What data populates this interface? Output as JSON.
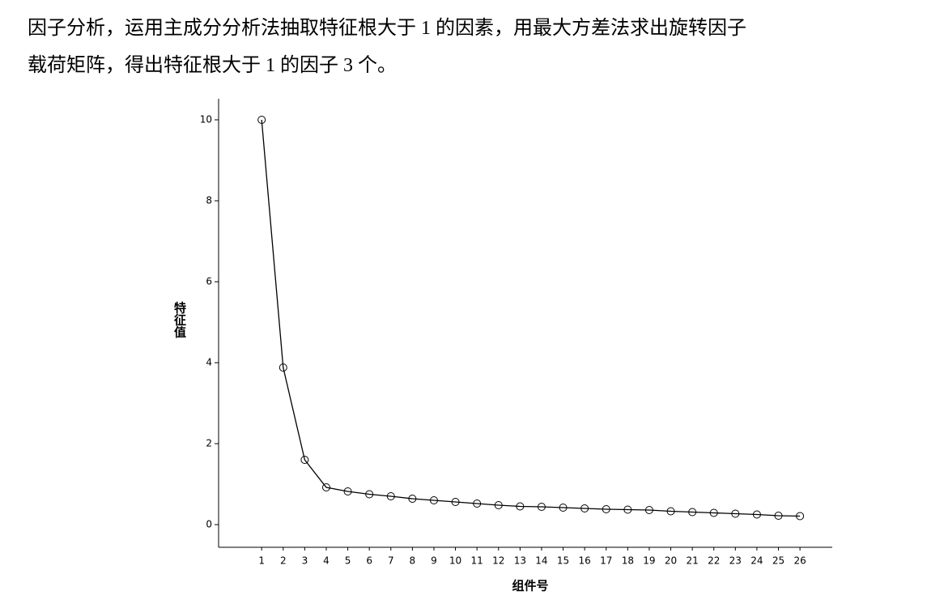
{
  "text_lines": [
    "因子分析，运用主成分分析法抽取特征根大于 1 的因素，用最大方差法求出旋转因子",
    "载荷矩阵，得出特征根大于 1 的因子 3 个。"
  ],
  "chart_data": {
    "type": "line",
    "x_label": "组件号",
    "y_label": "特征值",
    "x": [
      1,
      2,
      3,
      4,
      5,
      6,
      7,
      8,
      9,
      10,
      11,
      12,
      13,
      14,
      15,
      16,
      17,
      18,
      19,
      20,
      21,
      22,
      23,
      24,
      25,
      26
    ],
    "values": [
      10.0,
      3.88,
      1.6,
      0.92,
      0.82,
      0.75,
      0.7,
      0.64,
      0.6,
      0.56,
      0.52,
      0.48,
      0.45,
      0.44,
      0.42,
      0.4,
      0.38,
      0.37,
      0.36,
      0.33,
      0.31,
      0.29,
      0.27,
      0.25,
      0.22,
      0.21
    ],
    "color": "#000000",
    "xlim": [
      -1,
      27.5
    ],
    "xticks": [
      1,
      2,
      3,
      4,
      5,
      6,
      7,
      8,
      9,
      10,
      11,
      12,
      13,
      14,
      15,
      16,
      17,
      18,
      19,
      20,
      21,
      22,
      23,
      24,
      25,
      26
    ],
    "ylim": [
      -0.56,
      10.52
    ],
    "yticks": [
      0,
      2,
      4,
      6,
      8,
      10
    ],
    "grid": false
  }
}
